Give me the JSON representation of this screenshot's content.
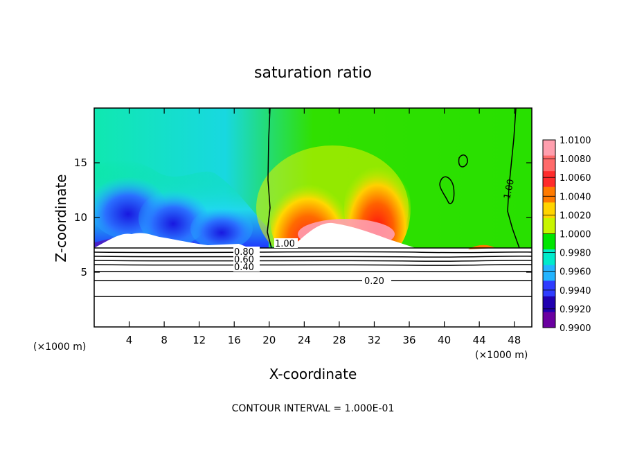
{
  "chart_data": {
    "type": "heatmap",
    "title": "saturation ratio",
    "xlabel": "X-coordinate",
    "ylabel": "Z-coordinate",
    "x_unit_label": "(×1000 m)",
    "x_unit_label_right": "(×1000 m)",
    "footer": "CONTOUR INTERVAL = 1.000E-01",
    "xlim": [
      0,
      50
    ],
    "ylim": [
      0,
      20
    ],
    "x_ticks": [
      4,
      8,
      12,
      16,
      20,
      24,
      28,
      32,
      36,
      40,
      44,
      48
    ],
    "x_tick_labels": [
      "4",
      "8",
      "12",
      "16",
      "20",
      "24",
      "28",
      "32",
      "36",
      "40",
      "44",
      "48"
    ],
    "y_ticks": [
      5,
      10,
      15
    ],
    "y_tick_labels": [
      "5",
      "10",
      "15"
    ],
    "colorbar": {
      "min": 0.99,
      "max": 1.01,
      "labels": [
        "1.0100",
        "1.0080",
        "1.0060",
        "1.0040",
        "1.0020",
        "1.0000",
        "0.9980",
        "0.9960",
        "0.9940",
        "0.9920",
        "0.9900"
      ],
      "colors": [
        "#ff9fae",
        "#ff6a6a",
        "#ff2b2b",
        "#ff7a00",
        "#ffd400",
        "#c8f500",
        "#00e600",
        "#00eacb",
        "#23b4ff",
        "#2f3cff",
        "#2000b0",
        "#6a00a0"
      ]
    },
    "contour_labels": [
      {
        "text": "1.00",
        "x": 21.5,
        "z": 7.4
      },
      {
        "text": "0.80",
        "x": 17.7,
        "z": 6.8
      },
      {
        "text": "0.60",
        "x": 17.7,
        "z": 6.3
      },
      {
        "text": "0.40",
        "x": 17.7,
        "z": 5.6
      },
      {
        "text": "0.20",
        "x": 32.5,
        "z": 4.1
      },
      {
        "text": "1.00",
        "x": 47,
        "z": 12.8
      }
    ],
    "contour_levels": [
      0.2,
      0.4,
      0.6,
      0.8,
      1.0
    ]
  }
}
